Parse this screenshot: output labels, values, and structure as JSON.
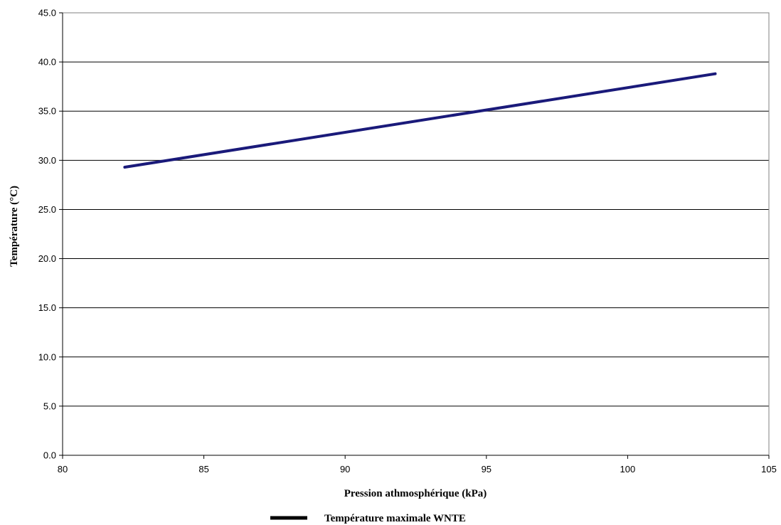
{
  "chart_data": {
    "type": "line",
    "title": "",
    "xlabel": "Pression athmosphérique (kPa)",
    "ylabel": "Température (°C)",
    "xlim": [
      80,
      105
    ],
    "ylim": [
      0,
      45
    ],
    "x_ticks": [
      "80",
      "85",
      "90",
      "95",
      "100",
      "105"
    ],
    "y_ticks": [
      "0.0",
      "5.0",
      "10.0",
      "15.0",
      "20.0",
      "25.0",
      "30.0",
      "35.0",
      "40.0",
      "45.0"
    ],
    "grid": "horizontal",
    "legend_position": "bottom",
    "series": [
      {
        "name": "Température maximale WNTE",
        "color": "#1a1a7a",
        "legend_color": "#000000",
        "x": [
          82.2,
          103.1
        ],
        "y": [
          29.3,
          38.8
        ]
      }
    ]
  }
}
